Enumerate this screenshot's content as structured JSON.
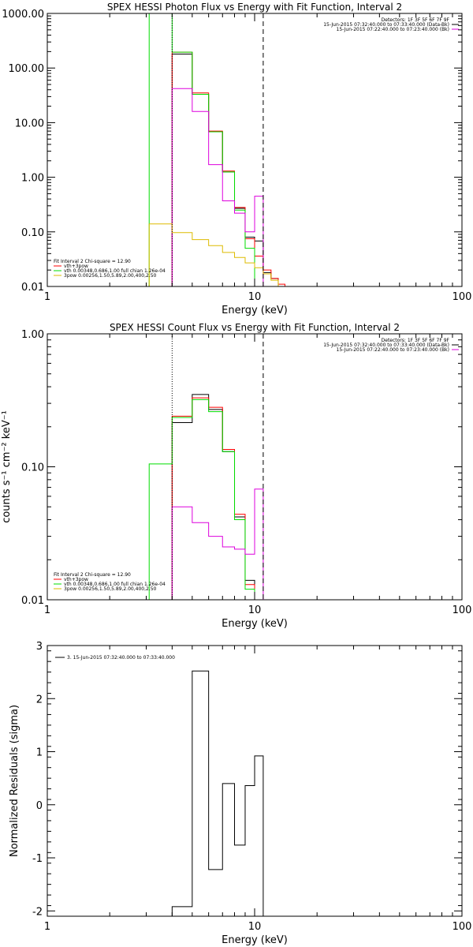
{
  "chart_data": [
    {
      "type": "line",
      "title": "SPEX HESSI Photon Flux vs Energy with Fit Function, Interval 2",
      "xlabel": "Energy (keV)",
      "ylabel": "",
      "xscale": "log",
      "yscale": "log",
      "xlim": [
        1,
        100
      ],
      "ylim": [
        0.01,
        1000
      ],
      "x_ticks": [
        "1",
        "10",
        "100"
      ],
      "y_ticks": [
        "0.01",
        "0.10",
        "1.00",
        "10.00",
        "100.00",
        "1000.00"
      ],
      "header_lines": [
        "Detectors: 1F 3F 5F 6F 7F 9F",
        "15-Jun-2015 07:32:40.000 to 07:33:40.000 (Data-Bk)",
        "15-Jun-2015 07:22:40.000 to 07:23:40.000 (Bk)"
      ],
      "fit_legend": [
        "Fit Interval 2   Chi-square = 12.90",
        "vth+3pow",
        "vth 0.00348,0.686,1.00  full chian 1.26e-04",
        "3pow 0.00256,1.50,5.89,2.00,400,2.50"
      ],
      "vlines": [
        {
          "x": 4.0,
          "style": "dotted"
        },
        {
          "x": 11.0,
          "style": "dashed"
        }
      ],
      "series": [
        {
          "color": "#000000",
          "edges": [
            4,
            5,
            6,
            7,
            8,
            9,
            10,
            11,
            12,
            13,
            14
          ],
          "values": [
            180,
            33,
            6.8,
            1.25,
            0.27,
            0.08,
            0.068,
            0.018,
            0.014,
            0.01
          ]
        },
        {
          "color": "#ff0000",
          "edges": [
            4,
            5,
            6,
            7,
            8,
            9,
            10,
            11,
            12,
            13,
            14,
            15
          ],
          "values": [
            195,
            35,
            7.0,
            1.3,
            0.28,
            0.075,
            0.036,
            0.02,
            0.014,
            0.011,
            0.01
          ]
        },
        {
          "color": "#00dd00",
          "edges": [
            3.1,
            4,
            5,
            6,
            7,
            8,
            9,
            10
          ],
          "values": [
            1000,
            195,
            33,
            6.8,
            1.25,
            0.25,
            0.05
          ]
        },
        {
          "color": "#dd00dd",
          "edges": [
            4,
            5,
            6,
            7,
            8,
            9,
            10,
            11
          ],
          "values": [
            42,
            16,
            1.7,
            0.37,
            0.22,
            0.1,
            0.45
          ]
        },
        {
          "color": "#ddbb00",
          "edges": [
            3.1,
            4,
            5,
            6,
            7,
            8,
            9,
            10,
            11,
            12,
            13,
            14
          ],
          "values": [
            0.14,
            0.097,
            0.072,
            0.056,
            0.042,
            0.034,
            0.027,
            0.022,
            0.017,
            0.013,
            0.01
          ]
        }
      ]
    },
    {
      "type": "line",
      "title": "SPEX HESSI Count Flux vs Energy with Fit Function, Interval 2",
      "xlabel": "Energy (keV)",
      "ylabel": "counts s⁻¹ cm⁻² keV⁻¹",
      "xscale": "log",
      "yscale": "log",
      "xlim": [
        1,
        100
      ],
      "ylim": [
        0.01,
        1
      ],
      "x_ticks": [
        "1",
        "10",
        "100"
      ],
      "y_ticks": [
        "0.01",
        "0.10",
        "1.00"
      ],
      "header_lines": [
        "Detectors: 1F 3F 5F 6F 7F 9F",
        "15-Jun-2015 07:32:40.000 to 07:33:40.000 (Data-Bk)",
        "15-Jun-2015 07:22:40.000 to 07:23:40.000 (Bk)"
      ],
      "fit_legend": [
        "Fit Interval 2   Chi-square = 12.90",
        "vth+3pow",
        "vth 0.00348,0.686,1.00  full chian 1.26e-04",
        "3pow 0.00256,1.50,5.89,2.00,400,2.50"
      ],
      "vlines": [
        {
          "x": 4.0,
          "style": "dotted"
        },
        {
          "x": 11.0,
          "style": "dashed"
        }
      ],
      "series": [
        {
          "color": "#000000",
          "edges": [
            4,
            5,
            6,
            7,
            8,
            9,
            10
          ],
          "values": [
            0.215,
            0.35,
            0.27,
            0.13,
            0.042,
            0.014
          ]
        },
        {
          "color": "#ff0000",
          "edges": [
            4,
            5,
            6,
            7,
            8,
            9,
            10
          ],
          "values": [
            0.24,
            0.33,
            0.28,
            0.135,
            0.044,
            0.013
          ]
        },
        {
          "color": "#00dd00",
          "edges": [
            3.1,
            4,
            5,
            6,
            7,
            8,
            9,
            10
          ],
          "values": [
            0.105,
            0.235,
            0.32,
            0.26,
            0.13,
            0.04,
            0.012
          ]
        },
        {
          "color": "#dd00dd",
          "edges": [
            4,
            5,
            6,
            7,
            8,
            9,
            10,
            11
          ],
          "values": [
            0.05,
            0.038,
            0.03,
            0.025,
            0.024,
            0.022,
            0.068
          ]
        }
      ]
    },
    {
      "type": "line",
      "title": "",
      "xlabel": "Energy (keV)",
      "ylabel": "Normalized Residuals (sigma)",
      "xscale": "log",
      "yscale": "linear",
      "xlim": [
        1,
        100
      ],
      "ylim": [
        -2.1,
        3
      ],
      "x_ticks": [
        "1",
        "10",
        "100"
      ],
      "y_ticks": [
        "-2",
        "-1",
        "0",
        "1",
        "2",
        "3"
      ],
      "legend": [
        "3. 15-Jun-2015 07:32:40.000 to 07:33:40.000"
      ],
      "series": [
        {
          "color": "#000000",
          "edges": [
            4,
            5,
            6,
            7,
            8,
            9,
            10,
            11
          ],
          "values": [
            -1.92,
            2.52,
            -1.22,
            0.4,
            -0.76,
            0.36,
            0.92
          ]
        }
      ]
    }
  ]
}
